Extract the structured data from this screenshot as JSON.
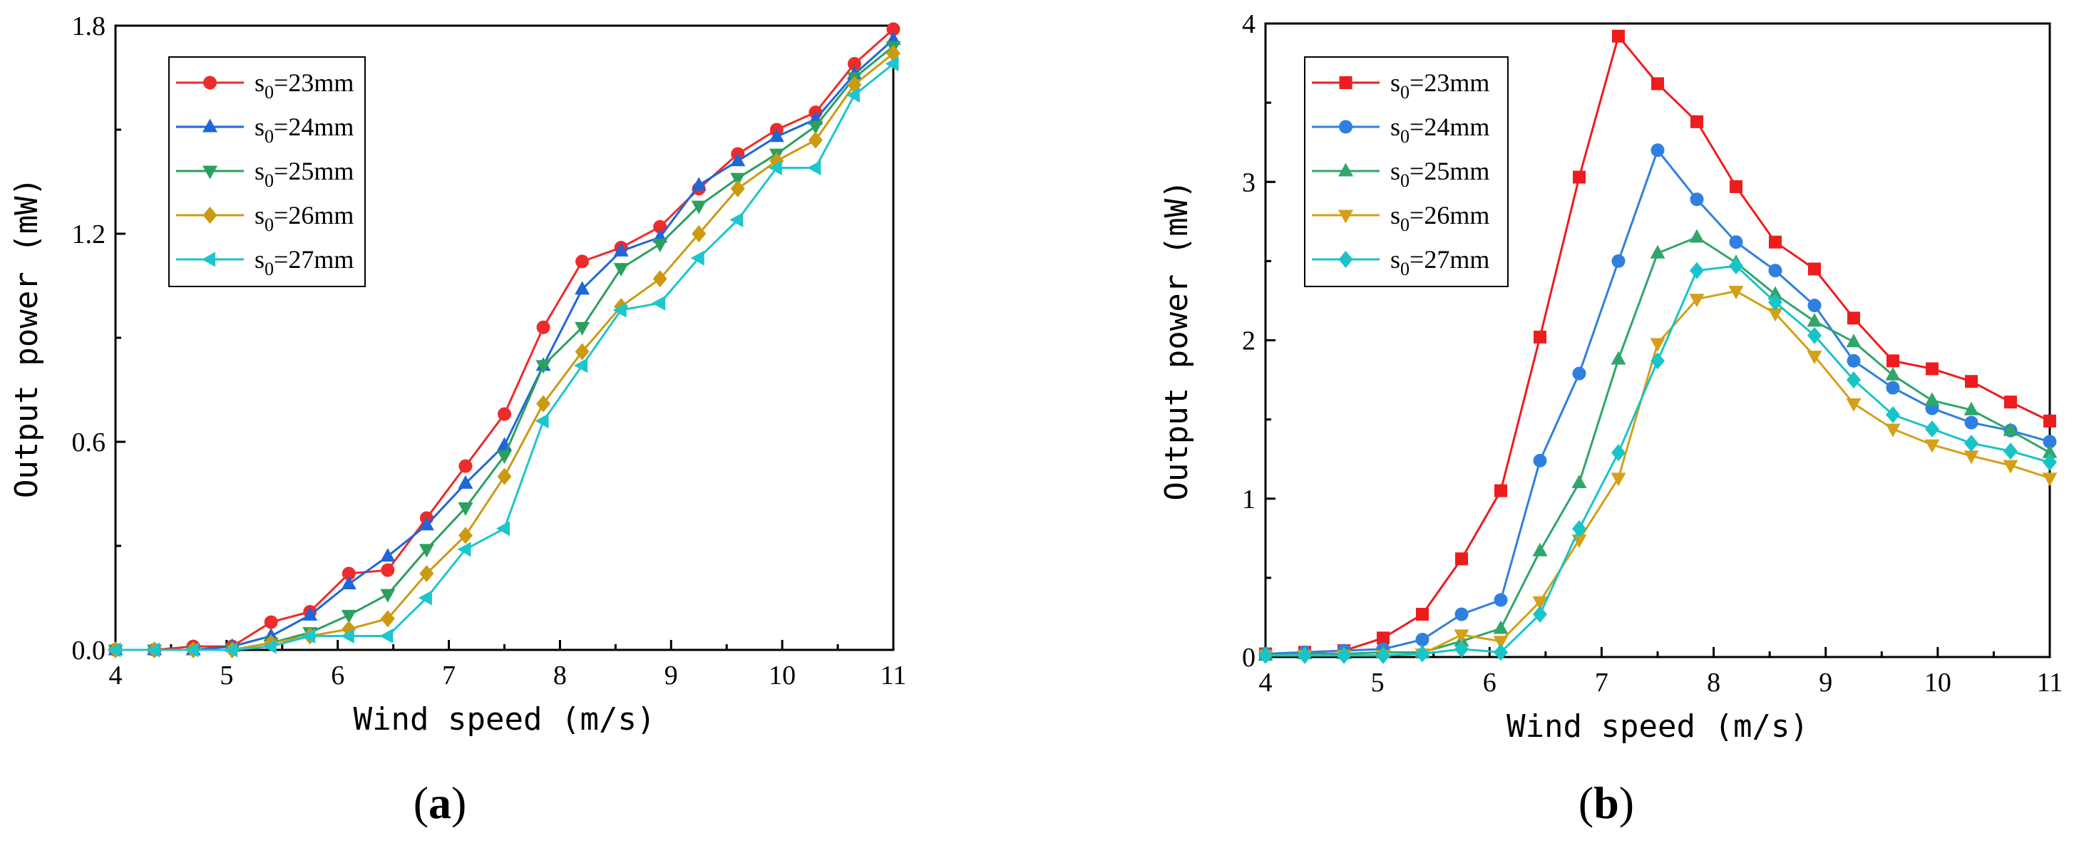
{
  "chart_data": [
    {
      "id": "a",
      "type": "line",
      "panel_label_open": "(",
      "panel_label_letter": "a",
      "panel_label_close": ")",
      "xlabel": "Wind speed (m/s)",
      "ylabel": "Output power (mW)",
      "xlim": [
        4,
        11
      ],
      "ylim": [
        0,
        1.8
      ],
      "xticks": [
        4,
        5,
        6,
        7,
        8,
        9,
        10,
        11
      ],
      "xtick_labels": [
        "4",
        "5",
        "6",
        "7",
        "8",
        "9",
        "10",
        "11"
      ],
      "yticks": [
        0,
        0.6,
        1.2,
        1.8
      ],
      "ytick_labels": [
        "0.0",
        "0.6",
        "1.2",
        "1.8"
      ],
      "legend_position": "top-left",
      "x": [
        4.0,
        4.35,
        4.7,
        5.05,
        5.4,
        5.75,
        6.1,
        6.45,
        6.8,
        7.15,
        7.5,
        7.85,
        8.2,
        8.55,
        8.9,
        9.25,
        9.6,
        9.95,
        10.3,
        10.65,
        11.0
      ],
      "series": [
        {
          "name_base": "s",
          "name_sub": "0",
          "name_rest": "=23mm",
          "color": "#ee2b2b",
          "marker": "circle",
          "values": [
            0.0,
            0.0,
            0.01,
            0.01,
            0.08,
            0.11,
            0.22,
            0.23,
            0.38,
            0.53,
            0.68,
            0.93,
            1.12,
            1.16,
            1.22,
            1.33,
            1.43,
            1.5,
            1.55,
            1.69,
            1.79
          ]
        },
        {
          "name_base": "s",
          "name_sub": "0",
          "name_rest": "=24mm",
          "color": "#1f66d9",
          "marker": "triangle-up",
          "values": [
            0.0,
            0.0,
            0.0,
            0.01,
            0.04,
            0.1,
            0.19,
            0.27,
            0.36,
            0.48,
            0.59,
            0.82,
            1.04,
            1.15,
            1.19,
            1.34,
            1.41,
            1.48,
            1.53,
            1.66,
            1.76
          ]
        },
        {
          "name_base": "s",
          "name_sub": "0",
          "name_rest": "=25mm",
          "color": "#2ba05e",
          "marker": "triangle-down",
          "values": [
            0.0,
            0.0,
            0.0,
            0.0,
            0.02,
            0.05,
            0.1,
            0.16,
            0.29,
            0.41,
            0.56,
            0.82,
            0.93,
            1.1,
            1.17,
            1.28,
            1.36,
            1.43,
            1.51,
            1.65,
            1.74
          ]
        },
        {
          "name_base": "s",
          "name_sub": "0",
          "name_rest": "=26mm",
          "color": "#cc9a12",
          "marker": "diamond",
          "values": [
            0.0,
            0.0,
            0.0,
            0.0,
            0.02,
            0.04,
            0.06,
            0.09,
            0.22,
            0.33,
            0.5,
            0.71,
            0.86,
            0.99,
            1.07,
            1.2,
            1.33,
            1.41,
            1.47,
            1.63,
            1.72
          ]
        },
        {
          "name_base": "s",
          "name_sub": "0",
          "name_rest": "=27mm",
          "color": "#1cc6cc",
          "marker": "triangle-left",
          "values": [
            0.0,
            0.0,
            0.0,
            0.0,
            0.01,
            0.04,
            0.04,
            0.04,
            0.15,
            0.29,
            0.35,
            0.66,
            0.82,
            0.98,
            1.0,
            1.13,
            1.24,
            1.39,
            1.39,
            1.6,
            1.69
          ]
        }
      ]
    },
    {
      "id": "b",
      "type": "line",
      "panel_label_open": "(",
      "panel_label_letter": "b",
      "panel_label_close": ")",
      "xlabel": "Wind speed (m/s)",
      "ylabel": "Output power (mW)",
      "xlim": [
        4,
        11
      ],
      "ylim": [
        0,
        4
      ],
      "xticks": [
        4,
        5,
        6,
        7,
        8,
        9,
        10,
        11
      ],
      "xtick_labels": [
        "4",
        "5",
        "6",
        "7",
        "8",
        "9",
        "10",
        "11"
      ],
      "yticks": [
        0,
        1,
        2,
        3,
        4
      ],
      "ytick_labels": [
        "0",
        "1",
        "2",
        "3",
        "4"
      ],
      "legend_position": "top-left",
      "x": [
        4.0,
        4.35,
        4.7,
        5.05,
        5.4,
        5.75,
        6.1,
        6.45,
        6.8,
        7.15,
        7.5,
        7.85,
        8.2,
        8.55,
        8.9,
        9.25,
        9.6,
        9.95,
        10.3,
        10.65,
        11.0
      ],
      "series": [
        {
          "name_base": "s",
          "name_sub": "0",
          "name_rest": "=23mm",
          "color": "#ee1c1c",
          "marker": "square",
          "values": [
            0.02,
            0.03,
            0.04,
            0.12,
            0.27,
            0.62,
            1.05,
            2.02,
            3.03,
            3.92,
            3.62,
            3.38,
            2.97,
            2.62,
            2.45,
            2.14,
            1.87,
            1.82,
            1.74,
            1.61,
            1.49
          ]
        },
        {
          "name_base": "s",
          "name_sub": "0",
          "name_rest": "=24mm",
          "color": "#2f7fe0",
          "marker": "circle",
          "values": [
            0.02,
            0.03,
            0.04,
            0.05,
            0.11,
            0.27,
            0.36,
            1.24,
            1.79,
            2.5,
            3.2,
            2.89,
            2.62,
            2.44,
            2.22,
            1.87,
            1.7,
            1.57,
            1.48,
            1.43,
            1.36
          ]
        },
        {
          "name_base": "s",
          "name_sub": "0",
          "name_rest": "=25mm",
          "color": "#30a66c",
          "marker": "triangle-up",
          "values": [
            0.01,
            0.02,
            0.02,
            0.03,
            0.03,
            0.1,
            0.18,
            0.67,
            1.1,
            1.88,
            2.55,
            2.65,
            2.49,
            2.29,
            2.12,
            1.99,
            1.78,
            1.62,
            1.56,
            1.43,
            1.29
          ]
        },
        {
          "name_base": "s",
          "name_sub": "0",
          "name_rest": "=26mm",
          "color": "#d4a017",
          "marker": "triangle-down",
          "values": [
            0.01,
            0.01,
            0.01,
            0.01,
            0.02,
            0.14,
            0.1,
            0.35,
            0.74,
            1.13,
            1.98,
            2.26,
            2.31,
            2.17,
            1.9,
            1.6,
            1.44,
            1.34,
            1.27,
            1.21,
            1.13
          ]
        },
        {
          "name_base": "s",
          "name_sub": "0",
          "name_rest": "=27mm",
          "color": "#19c4c9",
          "marker": "diamond",
          "values": [
            0.01,
            0.01,
            0.01,
            0.01,
            0.02,
            0.05,
            0.03,
            0.27,
            0.81,
            1.29,
            1.87,
            2.44,
            2.47,
            2.24,
            2.03,
            1.75,
            1.53,
            1.44,
            1.35,
            1.3,
            1.23
          ]
        }
      ]
    }
  ]
}
